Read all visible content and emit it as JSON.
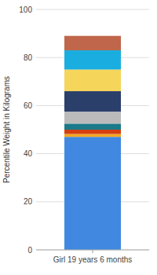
{
  "chart_data": {
    "type": "bar",
    "stacked": true,
    "categories": [
      "Girl 19 years 6 months"
    ],
    "y_label": "Percentile Weight in Kilograms",
    "series": [
      {
        "color": "#4189E0",
        "values": [
          47
        ]
      },
      {
        "color": "#F5A820",
        "values": [
          1.2
        ]
      },
      {
        "color": "#D44010",
        "values": [
          1.8
        ]
      },
      {
        "color": "#1A7A8A",
        "values": [
          2.5
        ]
      },
      {
        "color": "#BBBBBB",
        "values": [
          5
        ]
      },
      {
        "color": "#2B3F6B",
        "values": [
          8.5
        ]
      },
      {
        "color": "#F5D55A",
        "values": [
          9
        ]
      },
      {
        "color": "#1AAEE0",
        "values": [
          8
        ]
      },
      {
        "color": "#C0664A",
        "values": [
          6
        ]
      }
    ],
    "ylim": [
      0,
      100
    ],
    "yticks": [
      0,
      20,
      40,
      60,
      80,
      100
    ],
    "grid": true
  }
}
